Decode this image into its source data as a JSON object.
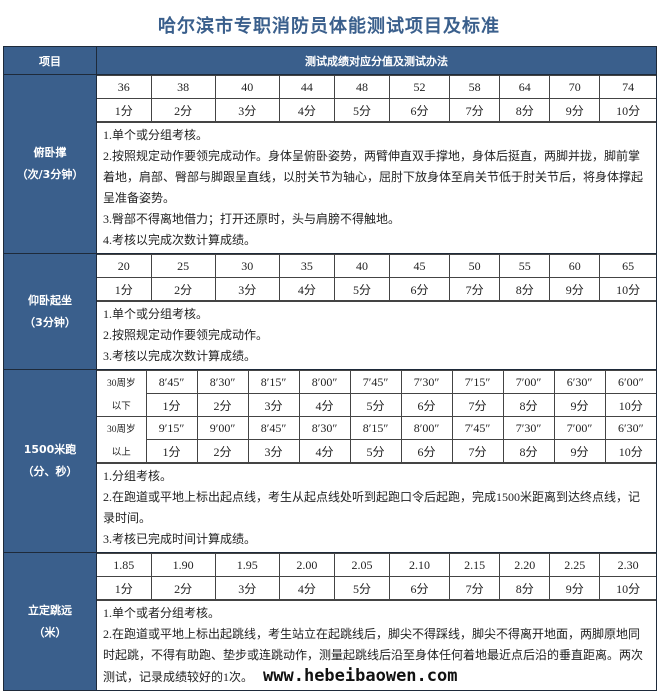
{
  "title": "哈尔滨市专职消防员体能测试项目及标准",
  "header": {
    "col1": "项目",
    "col2": "测试成绩对应分值及测试办法"
  },
  "scores": [
    "1分",
    "2分",
    "3分",
    "4分",
    "5分",
    "6分",
    "7分",
    "8分",
    "9分",
    "10分"
  ],
  "sections": [
    {
      "name": "俯卧撑",
      "unit": "（次/3分钟）",
      "values": [
        "36",
        "38",
        "40",
        "44",
        "48",
        "52",
        "58",
        "64",
        "70",
        "74"
      ],
      "notes": [
        "1.单个或分组考核。",
        "2.按照规定动作要领完成动作。身体呈俯卧姿势，两臂伸直双手撑地，身体后挺直，两脚并拢，脚前掌着地，肩部、臀部与脚跟呈直线，以肘关节为轴心，屈肘下放身体至肩关节低于肘关节后，将身体撑起呈准备姿势。",
        "3.臀部不得离地借力；打开还原时，头与肩膀不得触地。",
        "4.考核以完成次数计算成绩。"
      ]
    },
    {
      "name": "仰卧起坐",
      "unit": "（3分钟）",
      "values": [
        "20",
        "25",
        "30",
        "35",
        "40",
        "45",
        "50",
        "55",
        "60",
        "65"
      ],
      "notes": [
        "1.单个或分组考核。",
        "2.按照规定动作要领完成动作。",
        "3.考核以完成次数计算成绩。"
      ]
    },
    {
      "name": "1500米跑",
      "unit": "（分、秒）",
      "groups": [
        {
          "label1": "30周岁",
          "label2": "以下",
          "values": [
            "8′45″",
            "8′30″",
            "8′15″",
            "8′00″",
            "7′45″",
            "7′30″",
            "7′15″",
            "7′00″",
            "6′30″",
            "6′00″"
          ]
        },
        {
          "label1": "30周岁",
          "label2": "以上",
          "values": [
            "9′15″",
            "9′00″",
            "8′45″",
            "8′30″",
            "8′15″",
            "8′00″",
            "7′45″",
            "7′30″",
            "7′00″",
            "6′30″"
          ]
        }
      ],
      "notes": [
        "1.分组考核。",
        "2.在跑道或平地上标出起点线，考生从起点线处听到起跑口令后起跑，完成1500米距离到达终点线，记录时间。",
        "3.考核已完成时间计算成绩。"
      ]
    },
    {
      "name": "立定跳远",
      "unit": "（米）",
      "values": [
        "1.85",
        "1.90",
        "1.95",
        "2.00",
        "2.05",
        "2.10",
        "2.15",
        "2.20",
        "2.25",
        "2.30"
      ],
      "notes": [
        "1.单个或者分组考核。",
        "2.在跑道或平地上标出起跳线，考生站立在起跳线后，脚尖不得踩线，脚尖不得离开地面，两脚原地同时起跳，不得有助跑、垫步或连跳动作，测量起跳线后沿至身体任何着地最近点后沿的垂直距离。两次测试，记录成绩较好的1次。"
      ]
    }
  ],
  "watermark": "www.hebeibaowen.com",
  "colors": {
    "header_bg": "#3a5f8c",
    "title": "#3a5f8c"
  }
}
